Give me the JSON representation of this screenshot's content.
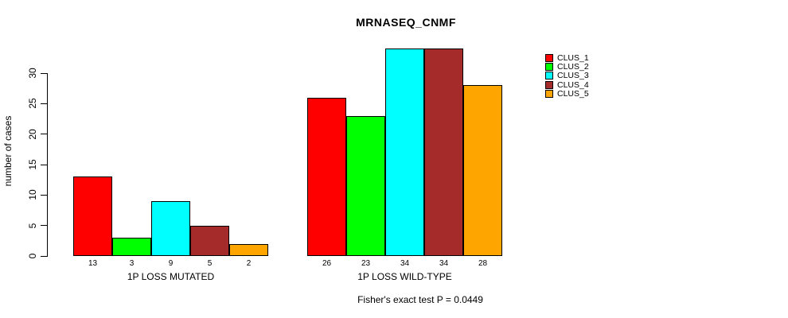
{
  "chart_data": {
    "type": "bar",
    "title": "MRNASEQ_CNMF",
    "ylabel": "number of cases",
    "xlabel": "",
    "yticks": [
      0,
      5,
      10,
      15,
      20,
      25,
      30
    ],
    "ylim": [
      0,
      34.5
    ],
    "grid": false,
    "legend_position": "right",
    "categories": [
      "1P LOSS MUTATED",
      "1P LOSS WILD-TYPE"
    ],
    "series": [
      {
        "name": "CLUS_1",
        "color": "#FF0000",
        "values": [
          13,
          26
        ]
      },
      {
        "name": "CLUS_2",
        "color": "#00FF00",
        "values": [
          3,
          23
        ]
      },
      {
        "name": "CLUS_3",
        "color": "#00FFFF",
        "values": [
          9,
          34
        ]
      },
      {
        "name": "CLUS_4",
        "color": "#A52A2A",
        "values": [
          5,
          34
        ]
      },
      {
        "name": "CLUS_5",
        "color": "#FFA500",
        "values": [
          2,
          28
        ]
      }
    ],
    "bar_value_labels": [
      [
        13,
        3,
        9,
        5,
        2
      ],
      [
        26,
        23,
        34,
        34,
        28
      ]
    ],
    "annotation": "Fisher's exact test P = 0.0449"
  }
}
